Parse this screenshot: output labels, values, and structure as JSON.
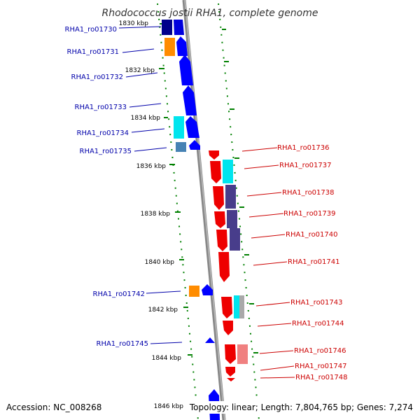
{
  "title": "Rhodococcus jostii RHA1, complete genome",
  "accession": "Accession: NC_008268",
  "summary": "Topology: linear; Length: 7,804,765 bp; Genes: 7,274",
  "colors": {
    "forward_label": "#0000aa",
    "reverse_label": "#cc0000",
    "tick": "#008000",
    "backbone": "#888888"
  },
  "kbp_ticks": [
    "1830 kbp",
    "1832 kbp",
    "1834 kbp",
    "1836 kbp",
    "1838 kbp",
    "1840 kbp",
    "1842 kbp",
    "1844 kbp",
    "1846 kbp"
  ],
  "forward_genes": [
    "RHA1_ro01730",
    "RHA1_ro01731",
    "RHA1_ro01732",
    "RHA1_ro01733",
    "RHA1_ro01734",
    "RHA1_ro01735",
    "RHA1_ro01742",
    "RHA1_ro01745"
  ],
  "reverse_genes": [
    "RHA1_ro01736",
    "RHA1_ro01737",
    "RHA1_ro01738",
    "RHA1_ro01739",
    "RHA1_ro01740",
    "RHA1_ro01741",
    "RHA1_ro01743",
    "RHA1_ro01744",
    "RHA1_ro01746",
    "RHA1_ro01747",
    "RHA1_ro01748"
  ]
}
